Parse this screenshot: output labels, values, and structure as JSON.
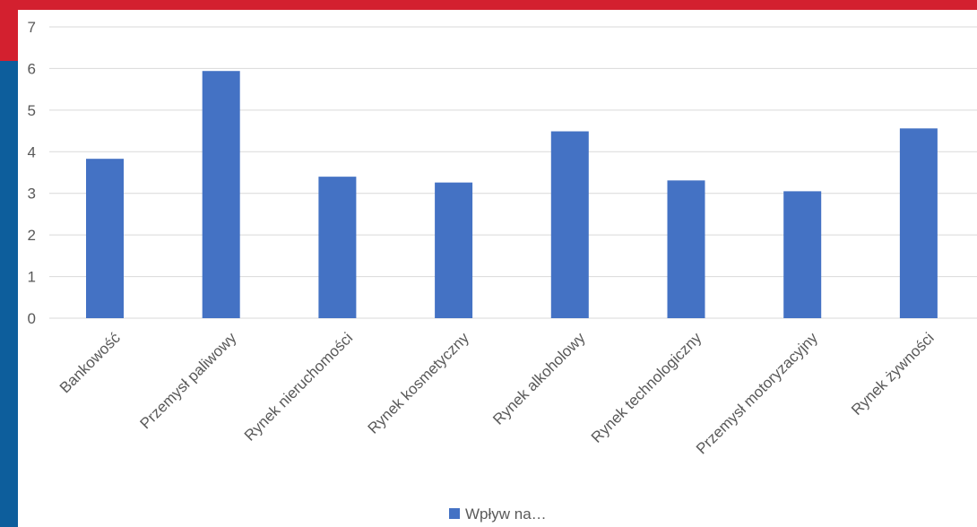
{
  "theme": {
    "red": "#d3202f",
    "blue": "#0d5e9c",
    "bar": "#4472c4",
    "grid": "#d9d9d9",
    "text": "#595959"
  },
  "chart_data": {
    "type": "bar",
    "title": "",
    "xlabel": "",
    "ylabel": "",
    "ylim": [
      0,
      7
    ],
    "yticks": [
      0,
      1,
      2,
      3,
      4,
      5,
      6,
      7
    ],
    "grid": true,
    "legend_position": "bottom",
    "categories": [
      "Bankowość",
      "Przemysł paliwowy",
      "Rynek nieruchomości",
      "Rynek kosmetyczny",
      "Rynek alkoholowy",
      "Rynek technologiczny",
      "Przemysł motoryzacyjny",
      "Rynek żywności"
    ],
    "series": [
      {
        "name": "Wpływ na…",
        "color": "#4472c4",
        "values": [
          3.83,
          5.94,
          3.4,
          3.26,
          4.49,
          3.31,
          3.05,
          4.56
        ]
      }
    ]
  }
}
